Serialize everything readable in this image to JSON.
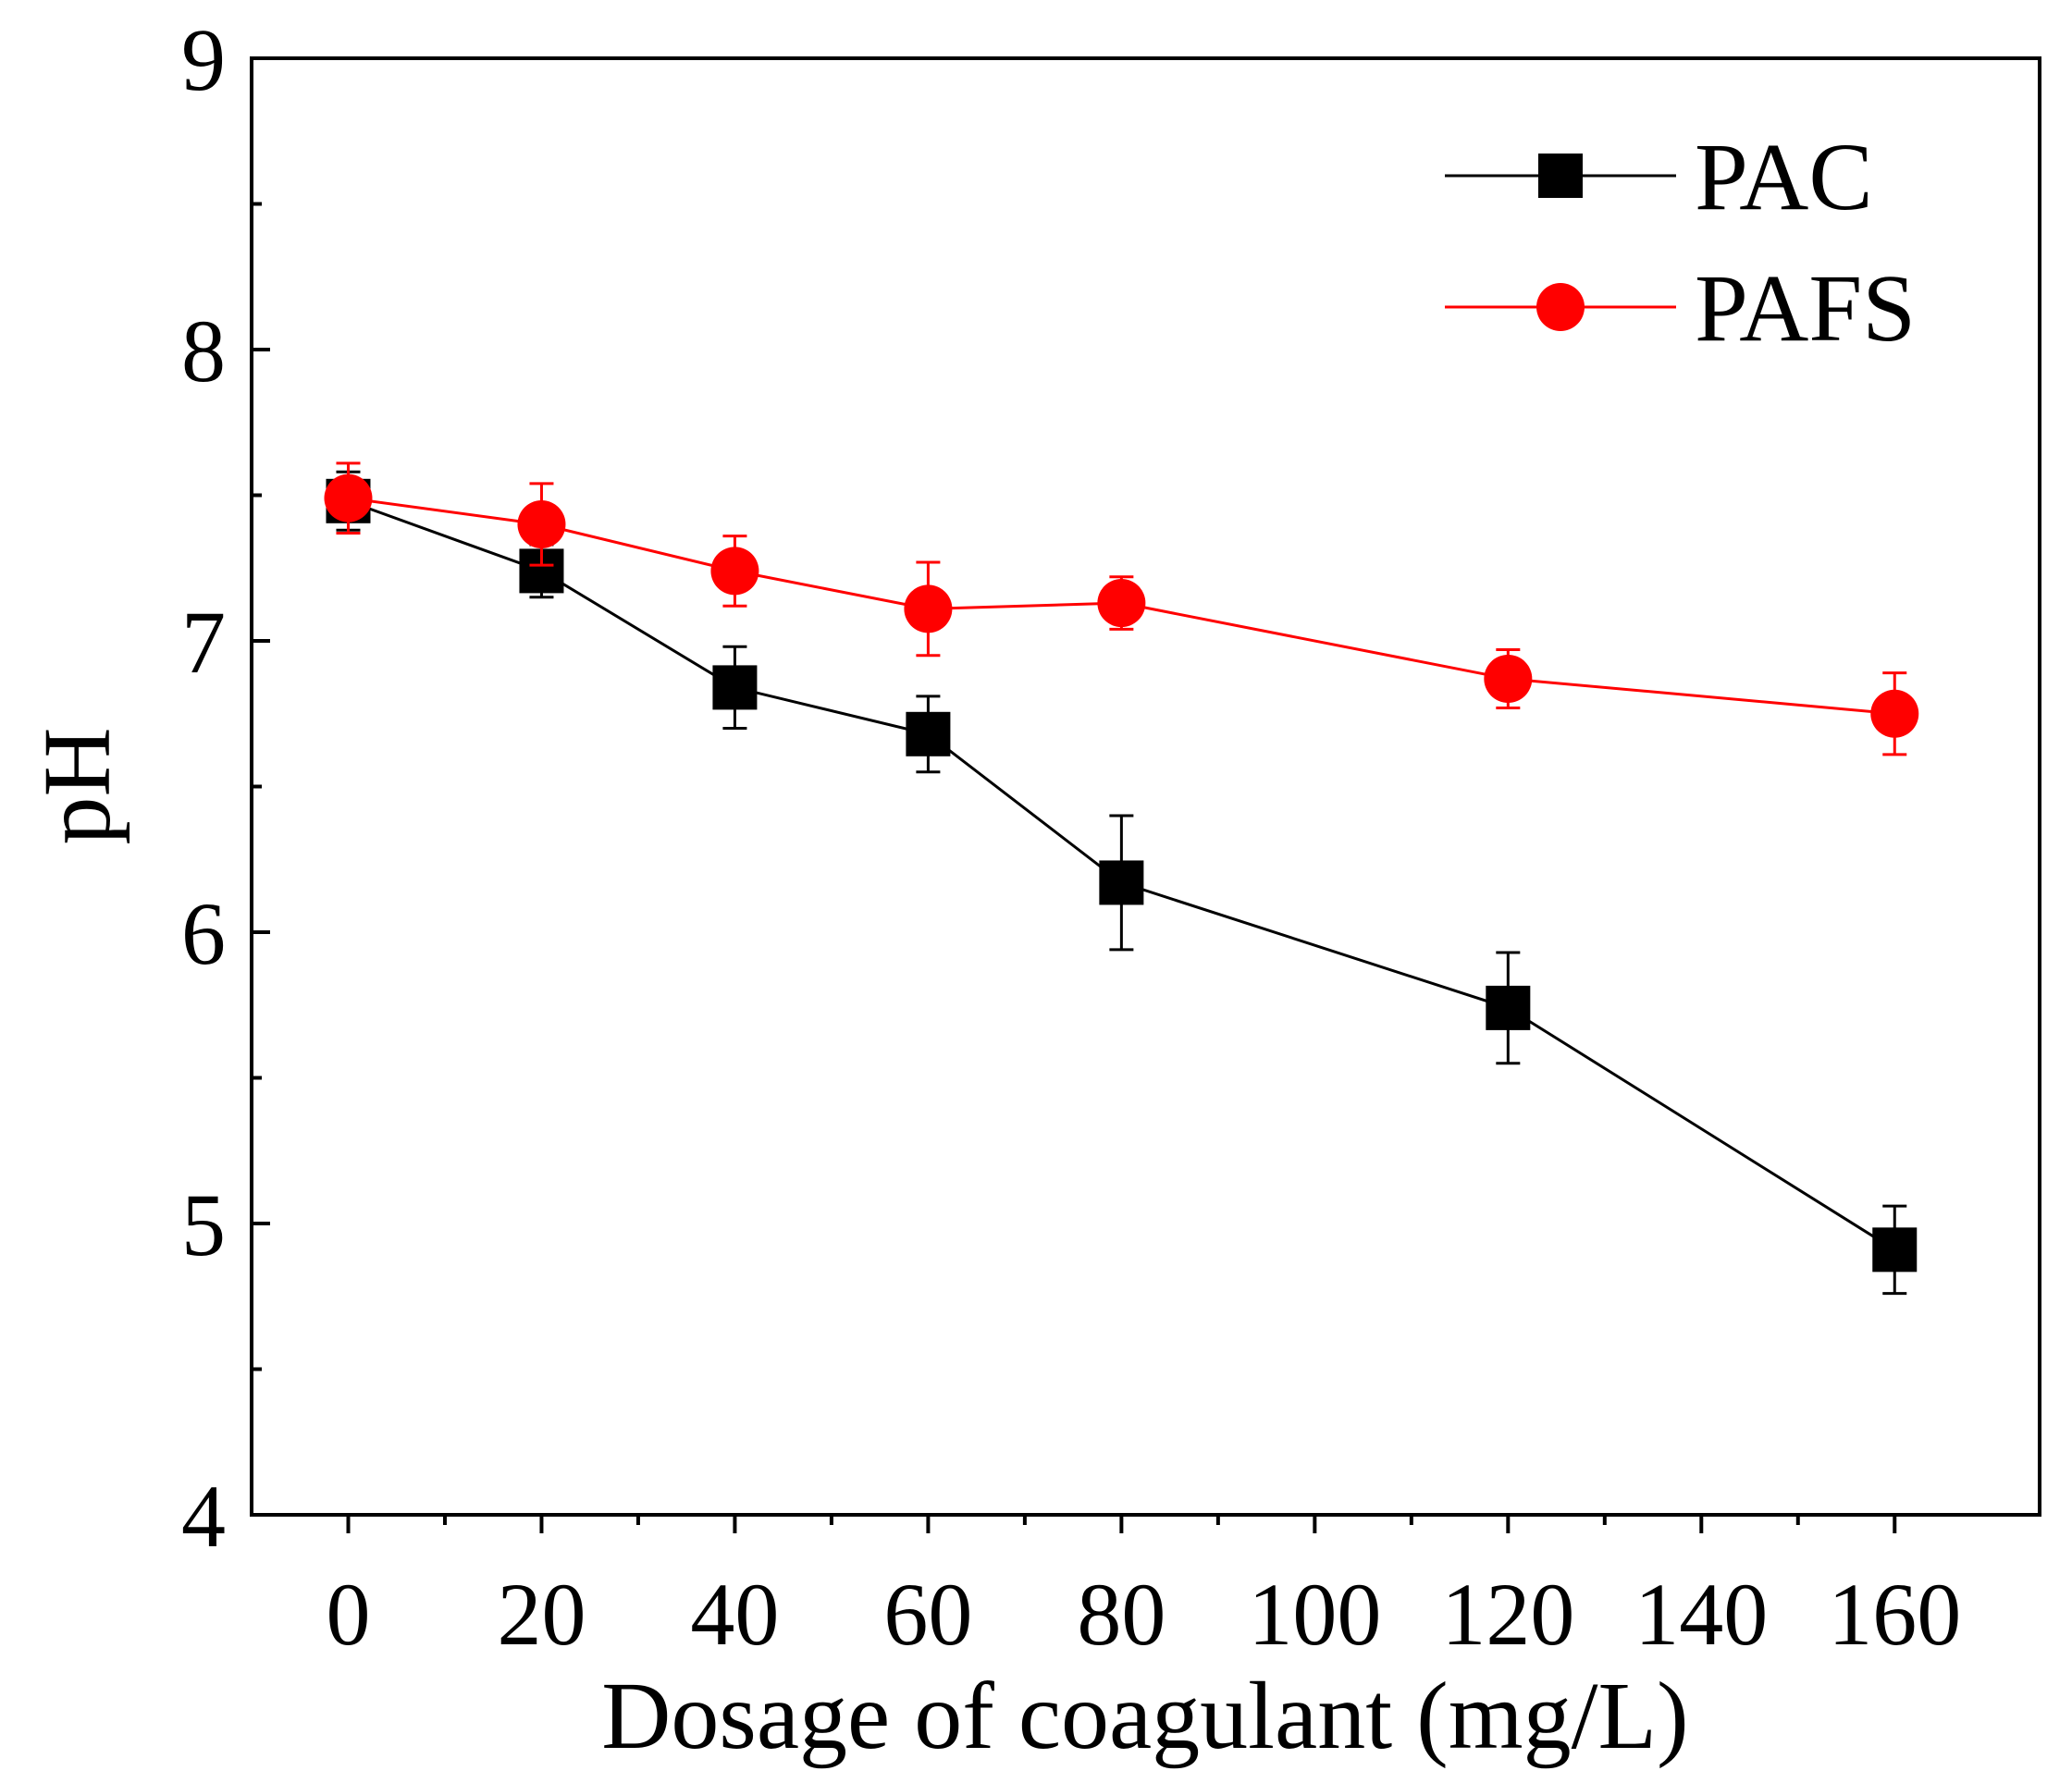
{
  "chart_data": {
    "type": "line",
    "title": "",
    "xlabel": "Dosage of coagulant (mg/L)",
    "ylabel": "pH",
    "xlim": [
      -10,
      175
    ],
    "ylim": [
      4,
      9
    ],
    "x_ticks": [
      0,
      20,
      40,
      60,
      80,
      100,
      120,
      140,
      160
    ],
    "x_tick_labels": [
      "0",
      "20",
      "40",
      "60",
      "80",
      "100",
      "120",
      "140",
      "160"
    ],
    "y_ticks": [
      4,
      5,
      6,
      7,
      8,
      9
    ],
    "y_tick_labels": [
      "4",
      "5",
      "6",
      "7",
      "8",
      "9"
    ],
    "y_minor_ticks": [
      4.5,
      5.5,
      6.5,
      7.5,
      8.5
    ],
    "legend_position": "top-right",
    "series": [
      {
        "name": "PAC",
        "color": "#000000",
        "marker": "square",
        "x": [
          0,
          20,
          40,
          60,
          80,
          120,
          160
        ],
        "y": [
          7.48,
          7.24,
          6.84,
          6.68,
          6.17,
          5.74,
          4.91
        ],
        "error": [
          0.1,
          0.09,
          0.14,
          0.13,
          0.23,
          0.19,
          0.15
        ]
      },
      {
        "name": "PAFS",
        "color": "#ff0000",
        "marker": "circle",
        "x": [
          0,
          20,
          40,
          60,
          80,
          120,
          160
        ],
        "y": [
          7.49,
          7.4,
          7.24,
          7.11,
          7.13,
          6.87,
          6.75
        ],
        "error": [
          0.12,
          0.14,
          0.12,
          0.16,
          0.09,
          0.1,
          0.14
        ]
      }
    ]
  }
}
